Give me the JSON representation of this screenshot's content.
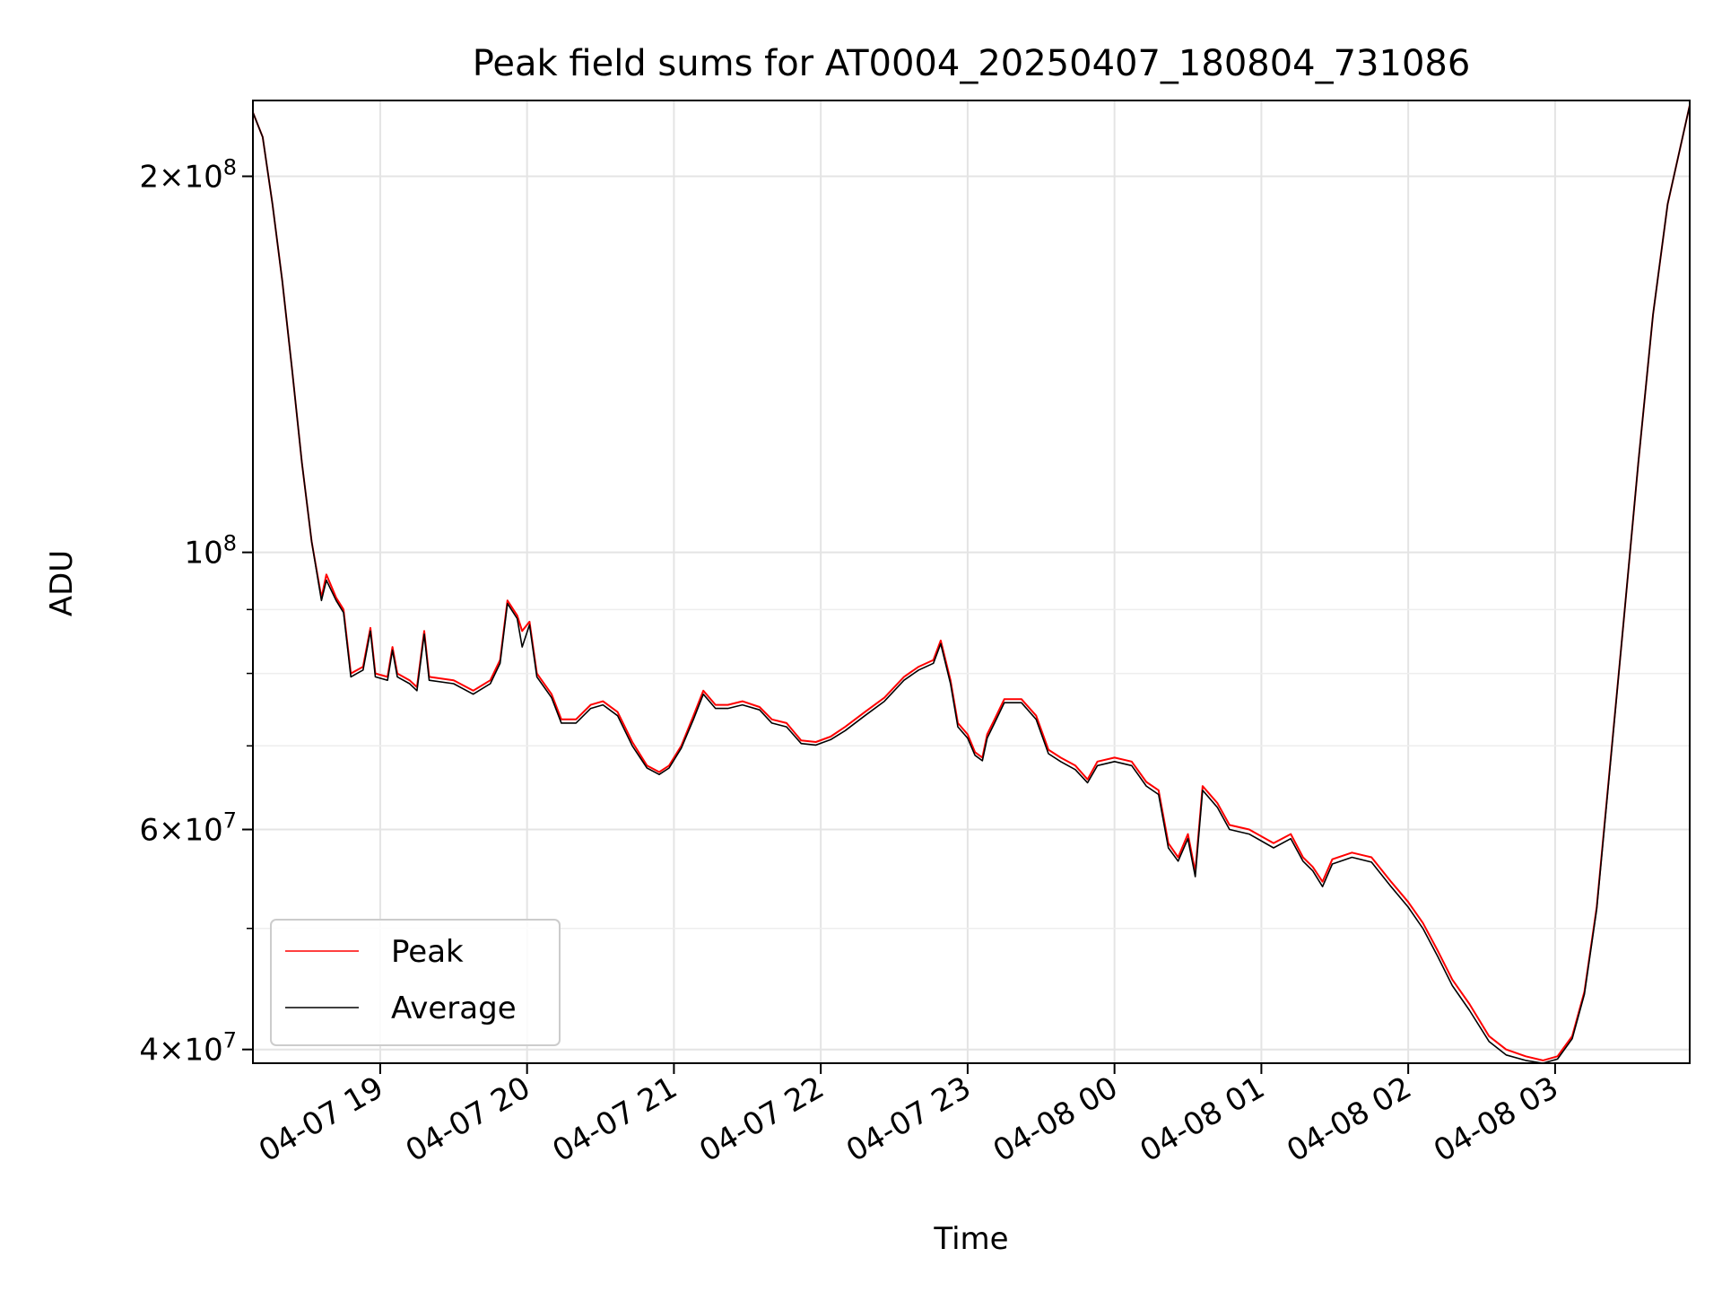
{
  "chart_data": {
    "type": "line",
    "title": "Peak field sums for AT0004_20250407_180804_731086",
    "xlabel": "Time",
    "ylabel": "ADU",
    "yscale": "log",
    "xlim": [
      "2025-04-07 18:08",
      "2025-04-08 03:55"
    ],
    "ylim": [
      39000000,
      230000000
    ],
    "grid": true,
    "legend_location": "lower-left",
    "x_ticks": [
      {
        "value": "2025-04-07 19:00",
        "label": "04-07 19"
      },
      {
        "value": "2025-04-07 20:00",
        "label": "04-07 20"
      },
      {
        "value": "2025-04-07 21:00",
        "label": "04-07 21"
      },
      {
        "value": "2025-04-07 22:00",
        "label": "04-07 22"
      },
      {
        "value": "2025-04-07 23:00",
        "label": "04-07 23"
      },
      {
        "value": "2025-04-08 00:00",
        "label": "04-08 00"
      },
      {
        "value": "2025-04-08 01:00",
        "label": "04-08 01"
      },
      {
        "value": "2025-04-08 02:00",
        "label": "04-08 02"
      },
      {
        "value": "2025-04-08 03:00",
        "label": "04-08 03"
      }
    ],
    "y_ticks_major": [
      {
        "value": 40000000,
        "mantissa": "4",
        "exponent": "7"
      },
      {
        "value": 60000000,
        "mantissa": "6",
        "exponent": "7"
      },
      {
        "value": 100000000,
        "mantissa": "",
        "exponent": "8"
      },
      {
        "value": 200000000,
        "mantissa": "2",
        "exponent": "8"
      }
    ],
    "y_ticks_minor": [
      50000000,
      70000000,
      80000000,
      90000000
    ],
    "series": [
      {
        "name": "Peak",
        "color": "#ff0000",
        "points": [
          [
            "2025-04-07 18:08",
            225000000
          ],
          [
            "2025-04-07 18:12",
            215000000
          ],
          [
            "2025-04-07 18:16",
            190000000
          ],
          [
            "2025-04-07 18:20",
            165000000
          ],
          [
            "2025-04-07 18:24",
            140000000
          ],
          [
            "2025-04-07 18:28",
            118000000
          ],
          [
            "2025-04-07 18:32",
            102000000
          ],
          [
            "2025-04-07 18:36",
            92000000
          ],
          [
            "2025-04-07 18:38",
            96000000
          ],
          [
            "2025-04-07 18:42",
            92000000
          ],
          [
            "2025-04-07 18:45",
            90000000
          ],
          [
            "2025-04-07 18:48",
            80000000
          ],
          [
            "2025-04-07 18:53",
            81000000
          ],
          [
            "2025-04-07 18:56",
            87000000
          ],
          [
            "2025-04-07 18:58",
            80000000
          ],
          [
            "2025-04-07 19:03",
            79500000
          ],
          [
            "2025-04-07 19:05",
            84000000
          ],
          [
            "2025-04-07 19:07",
            80000000
          ],
          [
            "2025-04-07 19:12",
            79000000
          ],
          [
            "2025-04-07 19:15",
            78000000
          ],
          [
            "2025-04-07 19:18",
            86500000
          ],
          [
            "2025-04-07 19:20",
            79500000
          ],
          [
            "2025-04-07 19:30",
            79000000
          ],
          [
            "2025-04-07 19:38",
            77500000
          ],
          [
            "2025-04-07 19:45",
            79000000
          ],
          [
            "2025-04-07 19:49",
            82000000
          ],
          [
            "2025-04-07 19:52",
            91500000
          ],
          [
            "2025-04-07 19:56",
            89000000
          ],
          [
            "2025-04-07 19:58",
            86500000
          ],
          [
            "2025-04-07 20:01",
            88000000
          ],
          [
            "2025-04-07 20:04",
            80000000
          ],
          [
            "2025-04-07 20:10",
            77000000
          ],
          [
            "2025-04-07 20:14",
            73500000
          ],
          [
            "2025-04-07 20:20",
            73500000
          ],
          [
            "2025-04-07 20:26",
            75500000
          ],
          [
            "2025-04-07 20:31",
            76000000
          ],
          [
            "2025-04-07 20:37",
            74500000
          ],
          [
            "2025-04-07 20:43",
            70500000
          ],
          [
            "2025-04-07 20:49",
            67500000
          ],
          [
            "2025-04-07 20:54",
            66700000
          ],
          [
            "2025-04-07 20:58",
            67500000
          ],
          [
            "2025-04-07 21:03",
            70000000
          ],
          [
            "2025-04-07 21:08",
            74000000
          ],
          [
            "2025-04-07 21:12",
            77500000
          ],
          [
            "2025-04-07 21:17",
            75500000
          ],
          [
            "2025-04-07 21:22",
            75500000
          ],
          [
            "2025-04-07 21:28",
            76000000
          ],
          [
            "2025-04-07 21:35",
            75200000
          ],
          [
            "2025-04-07 21:40",
            73500000
          ],
          [
            "2025-04-07 21:46",
            73000000
          ],
          [
            "2025-04-07 21:52",
            70700000
          ],
          [
            "2025-04-07 21:58",
            70500000
          ],
          [
            "2025-04-07 22:04",
            71200000
          ],
          [
            "2025-04-07 22:10",
            72500000
          ],
          [
            "2025-04-07 22:18",
            74500000
          ],
          [
            "2025-04-07 22:26",
            76500000
          ],
          [
            "2025-04-07 22:34",
            79500000
          ],
          [
            "2025-04-07 22:40",
            81000000
          ],
          [
            "2025-04-07 22:46",
            82000000
          ],
          [
            "2025-04-07 22:49",
            85000000
          ],
          [
            "2025-04-07 22:53",
            79000000
          ],
          [
            "2025-04-07 22:56",
            73000000
          ],
          [
            "2025-04-07 23:00",
            71500000
          ],
          [
            "2025-04-07 23:03",
            69200000
          ],
          [
            "2025-04-07 23:06",
            68500000
          ],
          [
            "2025-04-07 23:08",
            71500000
          ],
          [
            "2025-04-07 23:11",
            73500000
          ],
          [
            "2025-04-07 23:15",
            76300000
          ],
          [
            "2025-04-07 23:22",
            76300000
          ],
          [
            "2025-04-07 23:28",
            74000000
          ],
          [
            "2025-04-07 23:33",
            69500000
          ],
          [
            "2025-04-07 23:38",
            68500000
          ],
          [
            "2025-04-07 23:44",
            67500000
          ],
          [
            "2025-04-07 23:49",
            65800000
          ],
          [
            "2025-04-07 23:53",
            68000000
          ],
          [
            "2025-04-08 00:00",
            68500000
          ],
          [
            "2025-04-08 00:07",
            68000000
          ],
          [
            "2025-04-08 00:13",
            65500000
          ],
          [
            "2025-04-08 00:18",
            64500000
          ],
          [
            "2025-04-08 00:22",
            58500000
          ],
          [
            "2025-04-08 00:26",
            57000000
          ],
          [
            "2025-04-08 00:30",
            59500000
          ],
          [
            "2025-04-08 00:33",
            55500000
          ],
          [
            "2025-04-08 00:36",
            65000000
          ],
          [
            "2025-04-08 00:42",
            63000000
          ],
          [
            "2025-04-08 00:47",
            60500000
          ],
          [
            "2025-04-08 00:55",
            60000000
          ],
          [
            "2025-04-08 01:05",
            58500000
          ],
          [
            "2025-04-08 01:12",
            59500000
          ],
          [
            "2025-04-08 01:17",
            57000000
          ],
          [
            "2025-04-08 01:21",
            56000000
          ],
          [
            "2025-04-08 01:25",
            54500000
          ],
          [
            "2025-04-08 01:29",
            56800000
          ],
          [
            "2025-04-08 01:37",
            57500000
          ],
          [
            "2025-04-08 01:45",
            57000000
          ],
          [
            "2025-04-08 01:53",
            54500000
          ],
          [
            "2025-04-08 02:00",
            52500000
          ],
          [
            "2025-04-08 02:06",
            50500000
          ],
          [
            "2025-04-08 02:12",
            48000000
          ],
          [
            "2025-04-08 02:18",
            45500000
          ],
          [
            "2025-04-08 02:25",
            43500000
          ],
          [
            "2025-04-08 02:33",
            41000000
          ],
          [
            "2025-04-08 02:40",
            40000000
          ],
          [
            "2025-04-08 02:48",
            39500000
          ],
          [
            "2025-04-08 02:55",
            39200000
          ],
          [
            "2025-04-08 03:01",
            39500000
          ],
          [
            "2025-04-08 03:07",
            41000000
          ],
          [
            "2025-04-08 03:12",
            44500000
          ],
          [
            "2025-04-08 03:17",
            52000000
          ],
          [
            "2025-04-08 03:22",
            66000000
          ],
          [
            "2025-04-08 03:28",
            88000000
          ],
          [
            "2025-04-08 03:34",
            118000000
          ],
          [
            "2025-04-08 03:40",
            155000000
          ],
          [
            "2025-04-08 03:46",
            190000000
          ],
          [
            "2025-04-08 03:55",
            228000000
          ]
        ]
      },
      {
        "name": "Average",
        "color": "#000000",
        "points": [
          [
            "2025-04-07 18:08",
            225000000
          ],
          [
            "2025-04-07 18:12",
            215000000
          ],
          [
            "2025-04-07 18:16",
            190000000
          ],
          [
            "2025-04-07 18:20",
            165000000
          ],
          [
            "2025-04-07 18:24",
            140000000
          ],
          [
            "2025-04-07 18:28",
            118000000
          ],
          [
            "2025-04-07 18:32",
            102000000
          ],
          [
            "2025-04-07 18:36",
            91500000
          ],
          [
            "2025-04-07 18:38",
            95000000
          ],
          [
            "2025-04-07 18:42",
            91500000
          ],
          [
            "2025-04-07 18:45",
            89500000
          ],
          [
            "2025-04-07 18:48",
            79500000
          ],
          [
            "2025-04-07 18:53",
            80500000
          ],
          [
            "2025-04-07 18:56",
            86500000
          ],
          [
            "2025-04-07 18:58",
            79500000
          ],
          [
            "2025-04-07 19:03",
            79000000
          ],
          [
            "2025-04-07 19:05",
            83500000
          ],
          [
            "2025-04-07 19:07",
            79500000
          ],
          [
            "2025-04-07 19:12",
            78500000
          ],
          [
            "2025-04-07 19:15",
            77500000
          ],
          [
            "2025-04-07 19:18",
            86000000
          ],
          [
            "2025-04-07 19:20",
            79000000
          ],
          [
            "2025-04-07 19:30",
            78500000
          ],
          [
            "2025-04-07 19:38",
            77000000
          ],
          [
            "2025-04-07 19:45",
            78500000
          ],
          [
            "2025-04-07 19:49",
            81500000
          ],
          [
            "2025-04-07 19:52",
            91000000
          ],
          [
            "2025-04-07 19:56",
            88500000
          ],
          [
            "2025-04-07 19:58",
            84000000
          ],
          [
            "2025-04-07 20:01",
            87500000
          ],
          [
            "2025-04-07 20:04",
            79500000
          ],
          [
            "2025-04-07 20:10",
            76500000
          ],
          [
            "2025-04-07 20:14",
            73000000
          ],
          [
            "2025-04-07 20:20",
            73000000
          ],
          [
            "2025-04-07 20:26",
            75000000
          ],
          [
            "2025-04-07 20:31",
            75500000
          ],
          [
            "2025-04-07 20:37",
            74000000
          ],
          [
            "2025-04-07 20:43",
            70000000
          ],
          [
            "2025-04-07 20:49",
            67200000
          ],
          [
            "2025-04-07 20:54",
            66400000
          ],
          [
            "2025-04-07 20:58",
            67200000
          ],
          [
            "2025-04-07 21:03",
            69700000
          ],
          [
            "2025-04-07 21:08",
            73500000
          ],
          [
            "2025-04-07 21:12",
            77000000
          ],
          [
            "2025-04-07 21:17",
            75000000
          ],
          [
            "2025-04-07 21:22",
            75000000
          ],
          [
            "2025-04-07 21:28",
            75500000
          ],
          [
            "2025-04-07 21:35",
            74800000
          ],
          [
            "2025-04-07 21:40",
            73000000
          ],
          [
            "2025-04-07 21:46",
            72500000
          ],
          [
            "2025-04-07 21:52",
            70300000
          ],
          [
            "2025-04-07 21:58",
            70100000
          ],
          [
            "2025-04-07 22:04",
            70800000
          ],
          [
            "2025-04-07 22:10",
            72000000
          ],
          [
            "2025-04-07 22:18",
            74000000
          ],
          [
            "2025-04-07 22:26",
            76000000
          ],
          [
            "2025-04-07 22:34",
            79000000
          ],
          [
            "2025-04-07 22:40",
            80500000
          ],
          [
            "2025-04-07 22:46",
            81500000
          ],
          [
            "2025-04-07 22:49",
            84500000
          ],
          [
            "2025-04-07 22:53",
            78500000
          ],
          [
            "2025-04-07 22:56",
            72500000
          ],
          [
            "2025-04-07 23:00",
            71000000
          ],
          [
            "2025-04-07 23:03",
            68800000
          ],
          [
            "2025-04-07 23:06",
            68100000
          ],
          [
            "2025-04-07 23:08",
            71000000
          ],
          [
            "2025-04-07 23:11",
            73000000
          ],
          [
            "2025-04-07 23:15",
            75800000
          ],
          [
            "2025-04-07 23:22",
            75800000
          ],
          [
            "2025-04-07 23:28",
            73500000
          ],
          [
            "2025-04-07 23:33",
            69000000
          ],
          [
            "2025-04-07 23:38",
            68000000
          ],
          [
            "2025-04-07 23:44",
            67000000
          ],
          [
            "2025-04-07 23:49",
            65400000
          ],
          [
            "2025-04-07 23:53",
            67500000
          ],
          [
            "2025-04-08 00:00",
            68000000
          ],
          [
            "2025-04-08 00:07",
            67500000
          ],
          [
            "2025-04-08 00:13",
            65000000
          ],
          [
            "2025-04-08 00:18",
            64000000
          ],
          [
            "2025-04-08 00:22",
            58000000
          ],
          [
            "2025-04-08 00:26",
            56600000
          ],
          [
            "2025-04-08 00:30",
            59000000
          ],
          [
            "2025-04-08 00:33",
            55000000
          ],
          [
            "2025-04-08 00:36",
            64500000
          ],
          [
            "2025-04-08 00:42",
            62500000
          ],
          [
            "2025-04-08 00:47",
            60000000
          ],
          [
            "2025-04-08 00:55",
            59500000
          ],
          [
            "2025-04-08 01:05",
            58000000
          ],
          [
            "2025-04-08 01:12",
            59000000
          ],
          [
            "2025-04-08 01:17",
            56600000
          ],
          [
            "2025-04-08 01:21",
            55600000
          ],
          [
            "2025-04-08 01:25",
            54000000
          ],
          [
            "2025-04-08 01:29",
            56300000
          ],
          [
            "2025-04-08 01:37",
            57000000
          ],
          [
            "2025-04-08 01:45",
            56500000
          ],
          [
            "2025-04-08 01:53",
            54000000
          ],
          [
            "2025-04-08 02:00",
            52000000
          ],
          [
            "2025-04-08 02:06",
            50000000
          ],
          [
            "2025-04-08 02:12",
            47500000
          ],
          [
            "2025-04-08 02:18",
            45000000
          ],
          [
            "2025-04-08 02:25",
            43000000
          ],
          [
            "2025-04-08 02:33",
            40600000
          ],
          [
            "2025-04-08 02:40",
            39600000
          ],
          [
            "2025-04-08 02:48",
            39200000
          ],
          [
            "2025-04-08 02:55",
            39000000
          ],
          [
            "2025-04-08 03:01",
            39300000
          ],
          [
            "2025-04-08 03:07",
            40800000
          ],
          [
            "2025-04-08 03:12",
            44300000
          ],
          [
            "2025-04-08 03:17",
            51800000
          ],
          [
            "2025-04-08 03:22",
            65800000
          ],
          [
            "2025-04-08 03:28",
            88000000
          ],
          [
            "2025-04-08 03:34",
            118000000
          ],
          [
            "2025-04-08 03:40",
            155000000
          ],
          [
            "2025-04-08 03:46",
            190000000
          ],
          [
            "2025-04-08 03:55",
            228000000
          ]
        ]
      }
    ]
  }
}
